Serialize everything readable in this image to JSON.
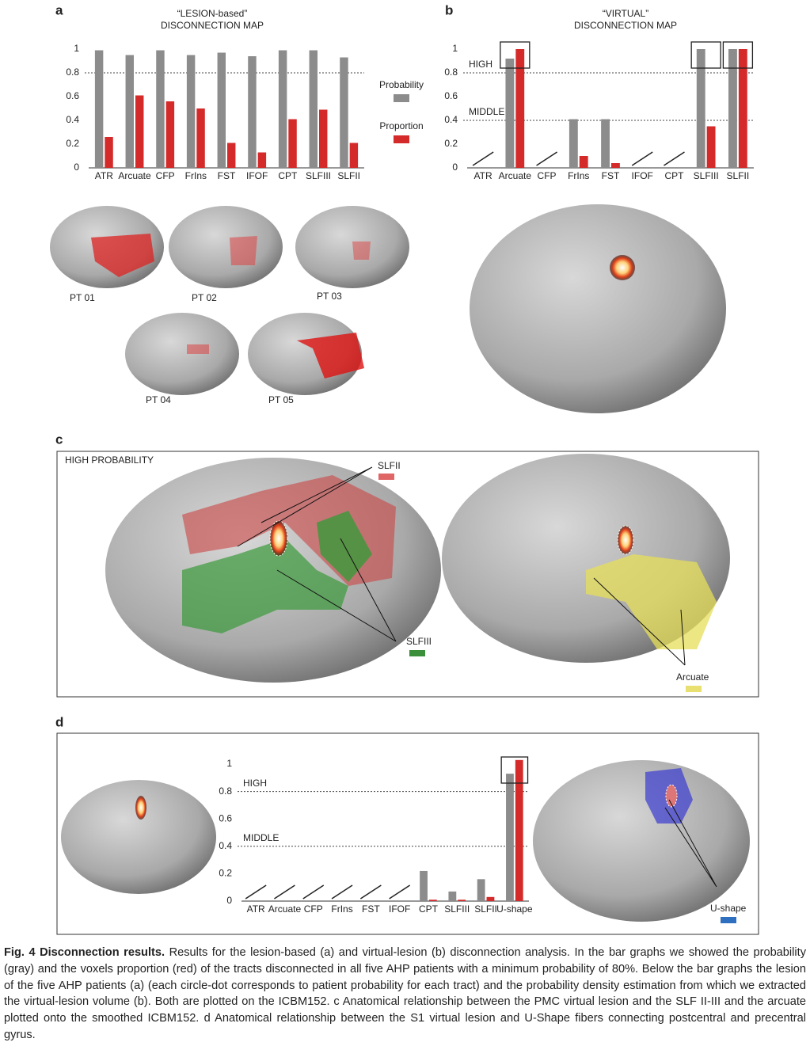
{
  "panel_labels": [
    "a",
    "b",
    "c",
    "d"
  ],
  "chart_data": [
    {
      "type": "bar",
      "title": [
        "“LESION-based”",
        "DISCONNECTION MAP"
      ],
      "categories": [
        "ATR",
        "Arcuate",
        "CFP",
        "FrIns",
        "FST",
        "IFOF",
        "CPT",
        "SLFIII",
        "SLFII"
      ],
      "series": [
        {
          "name": "Probability",
          "color": "#8c8c8c",
          "values": [
            0.99,
            0.95,
            0.99,
            0.95,
            0.97,
            0.94,
            0.99,
            0.99,
            0.93
          ]
        },
        {
          "name": "Proportion",
          "color": "#d42a2a",
          "values": [
            0.26,
            0.61,
            0.56,
            0.5,
            0.21,
            0.13,
            0.41,
            0.49,
            0.21
          ]
        }
      ],
      "ylim": [
        0,
        1
      ],
      "yticks": [
        0,
        0.2,
        0.4,
        0.6,
        0.8,
        1
      ],
      "threshold_lines": [
        {
          "value": 0.8
        }
      ],
      "legend": "right"
    },
    {
      "type": "bar",
      "title": [
        "“VIRTUAL”",
        "DISCONNECTION MAP"
      ],
      "categories": [
        "ATR",
        "Arcuate",
        "CFP",
        "FrIns",
        "FST",
        "IFOF",
        "CPT",
        "SLFIII",
        "SLFII"
      ],
      "series": [
        {
          "color": "#8c8c8c",
          "values": [
            null,
            0.92,
            null,
            0.41,
            0.41,
            null,
            null,
            1.0,
            1.0
          ]
        },
        {
          "color": "#d42a2a",
          "values": [
            null,
            1.0,
            null,
            0.1,
            0.04,
            null,
            null,
            0.35,
            1.0
          ]
        }
      ],
      "ylim": [
        0,
        1
      ],
      "yticks": [
        0,
        0.2,
        0.4,
        0.6,
        0.8,
        1
      ],
      "threshold_lines": [
        {
          "value": 0.8,
          "label": "HIGH"
        },
        {
          "value": 0.4,
          "label": "MIDDLE"
        }
      ],
      "highlight": [
        1,
        7,
        8
      ]
    },
    {
      "type": "bar",
      "categories": [
        "ATR",
        "Arcuate",
        "CFP",
        "FrIns",
        "FST",
        "IFOF",
        "CPT",
        "SLFIII",
        "SLFII",
        "U-shape"
      ],
      "series": [
        {
          "color": "#8c8c8c",
          "values": [
            null,
            null,
            null,
            null,
            null,
            null,
            0.22,
            0.07,
            0.16,
            0.93
          ]
        },
        {
          "color": "#d42a2a",
          "values": [
            null,
            null,
            null,
            null,
            null,
            null,
            0.01,
            0.01,
            0.03,
            1.03
          ]
        }
      ],
      "ylim": [
        0,
        1
      ],
      "yticks": [
        0,
        0.2,
        0.4,
        0.6,
        0.8,
        1
      ],
      "threshold_lines": [
        {
          "value": 0.8,
          "label": "HIGH"
        },
        {
          "value": 0.4,
          "label": "MIDDLE"
        }
      ],
      "highlight": [
        9
      ]
    }
  ],
  "brain_labels": [
    "PT 01",
    "PT 02",
    "PT 03",
    "PT 04",
    "PT 05"
  ],
  "panel_c": {
    "heading": "HIGH PROBABILITY",
    "legend": [
      {
        "label": "SLFII",
        "color": "#e06666"
      },
      {
        "label": "SLFIII",
        "color": "#3b8f3b"
      },
      {
        "label": "Arcuate",
        "color": "#e8e070"
      }
    ]
  },
  "panel_d": {
    "legend": [
      {
        "label": "U-shape",
        "color": "#2f6fbf"
      }
    ]
  },
  "caption": {
    "label": "Fig. 4 Disconnection results.",
    "text": "Results for the lesion-based (a) and virtual-lesion (b) disconnection analysis. In the bar graphs we showed the probability (gray) and the voxels proportion (red) of the tracts disconnected in all five AHP patients with a minimum probability of 80%. Below the bar graphs the lesion of the five AHP patients (a) (each circle-dot corresponds to patient probability for each tract) and the probability density estimation from which we extracted the virtual-lesion volume (b). Both are plotted on the ICBM152. c Anatomical relationship between the PMC virtual lesion and the SLF II-III and the arcuate plotted onto the smoothed ICBM152. d Anatomical relationship between the S1 virtual lesion and U-Shape fibers connecting postcentral and precentral gyrus."
  }
}
